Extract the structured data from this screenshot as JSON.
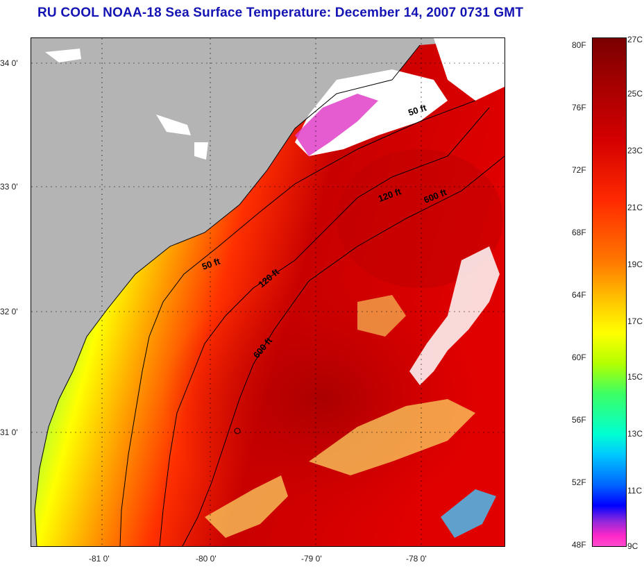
{
  "title": "RU COOL  NOAA-18  Sea Surface Temperature:  December 14, 2007 0731 GMT",
  "map": {
    "lat_ticks": [
      "34 0'",
      "33 0'",
      "32 0'",
      "31 0'"
    ],
    "lon_ticks": [
      "-81 0'",
      "-80 0'",
      "-79 0'",
      "-78 0'"
    ],
    "isobaths": [
      "50 ft",
      "50 ft",
      "120 ft",
      "120 ft",
      "600 ft",
      "600 ft"
    ],
    "colors": {
      "land": "#b4b4b4",
      "cloud": "#ffffff",
      "coastline": "#000000"
    }
  },
  "colorbar": {
    "fahrenheit": [
      "80F",
      "76F",
      "72F",
      "68F",
      "64F",
      "60F",
      "56F",
      "52F",
      "48F"
    ],
    "celsius": [
      "27C",
      "25C",
      "23C",
      "21C",
      "19C",
      "17C",
      "15C",
      "13C",
      "11C",
      "9C"
    ]
  }
}
